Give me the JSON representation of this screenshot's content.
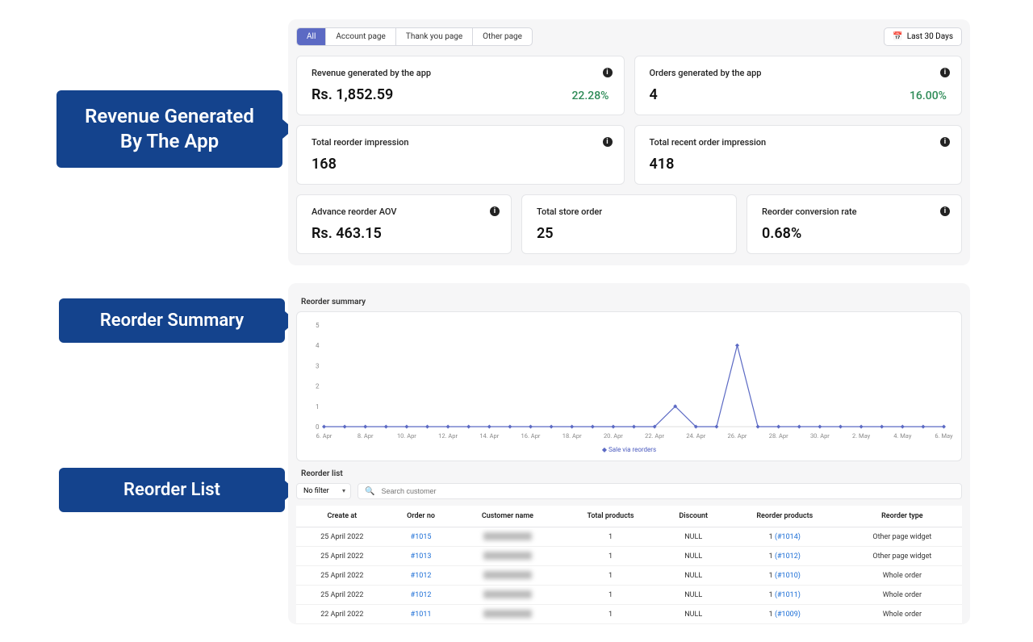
{
  "callouts": {
    "revenue": "Revenue Generated\nBy The App",
    "summary": "Reorder Summary",
    "list": "Reorder List"
  },
  "tabs": {
    "items": [
      "All",
      "Account page",
      "Thank you page",
      "Other page"
    ],
    "active_index": 0
  },
  "date_range": {
    "label": "Last 30 Days"
  },
  "cards": {
    "revenue": {
      "title": "Revenue generated by the app",
      "value": "Rs. 1,852.59",
      "delta": "22.28%",
      "has_info": true
    },
    "orders": {
      "title": "Orders generated by the app",
      "value": "4",
      "delta": "16.00%",
      "has_info": true
    },
    "reorder_impr": {
      "title": "Total reorder impression",
      "value": "168",
      "has_info": true
    },
    "recent_impr": {
      "title": "Total recent order impression",
      "value": "418",
      "has_info": true
    },
    "aov": {
      "title": "Advance reorder AOV",
      "value": "Rs. 463.15",
      "has_info": true
    },
    "store": {
      "title": "Total store order",
      "value": "25",
      "has_info": false
    },
    "conv": {
      "title": "Reorder conversion rate",
      "value": "0.68%",
      "has_info": true
    }
  },
  "chart": {
    "title": "Reorder summary",
    "type": "line",
    "y_axis": {
      "ticks": [
        0,
        1,
        2,
        3,
        4,
        5
      ],
      "min": 0,
      "max": 5,
      "tick_fontsize": 8,
      "color": "#888888"
    },
    "x_axis": {
      "labels": [
        "6. Apr",
        "8. Apr",
        "10. Apr",
        "12. Apr",
        "14. Apr",
        "16. Apr",
        "18. Apr",
        "20. Apr",
        "22. Apr",
        "24. Apr",
        "26. Apr",
        "28. Apr",
        "30. Apr",
        "2. May",
        "4. May",
        "6. May"
      ],
      "tick_fontsize": 8,
      "color": "#888888"
    },
    "series": [
      {
        "name": "Sale via reorders",
        "color": "#5c6ac4",
        "marker": "diamond",
        "marker_color": "#5c6ac4",
        "line_width": 1.2,
        "values": [
          0,
          0,
          0,
          0,
          0,
          0,
          0,
          0,
          0,
          0,
          0,
          0,
          0,
          0,
          0,
          0,
          0,
          1,
          0,
          0,
          4,
          0,
          0,
          0,
          0,
          0,
          0,
          0,
          0,
          0,
          0
        ]
      }
    ],
    "grid_color": "#eeeeee",
    "background_color": "#ffffff",
    "legend_position": "bottom-center",
    "legend_label": "Sale via reorders"
  },
  "reorder_list": {
    "title": "Reorder list",
    "filter_label": "No filter",
    "search_placeholder": "Search customer",
    "columns": [
      "Create at",
      "Order no",
      "Customer name",
      "Total products",
      "Discount",
      "Reorder products",
      "Reorder type"
    ],
    "rows": [
      {
        "created": "25 April 2022",
        "order": "#1015",
        "customer": "█████",
        "total": "1",
        "discount": "NULL",
        "reorder_qty": "1",
        "reorder_ref": "(#1014)",
        "type": "Other page widget"
      },
      {
        "created": "25 April 2022",
        "order": "#1013",
        "customer": "█████",
        "total": "1",
        "discount": "NULL",
        "reorder_qty": "1",
        "reorder_ref": "(#1012)",
        "type": "Other page widget"
      },
      {
        "created": "25 April 2022",
        "order": "#1012",
        "customer": "█████",
        "total": "1",
        "discount": "NULL",
        "reorder_qty": "1",
        "reorder_ref": "(#1010)",
        "type": "Whole order"
      },
      {
        "created": "25 April 2022",
        "order": "#1012",
        "customer": "█████",
        "total": "1",
        "discount": "NULL",
        "reorder_qty": "1",
        "reorder_ref": "(#1011)",
        "type": "Whole order"
      },
      {
        "created": "22 April 2022",
        "order": "#1011",
        "customer": "█████",
        "total": "1",
        "discount": "NULL",
        "reorder_qty": "1",
        "reorder_ref": "(#1009)",
        "type": "Whole order"
      }
    ]
  },
  "colors": {
    "callout_bg": "#14438d",
    "accent": "#5c6ac4",
    "positive": "#2e8b57",
    "panel_bg": "#f6f6f7",
    "card_border": "#e4e5e8",
    "link": "#1a6dd6"
  }
}
